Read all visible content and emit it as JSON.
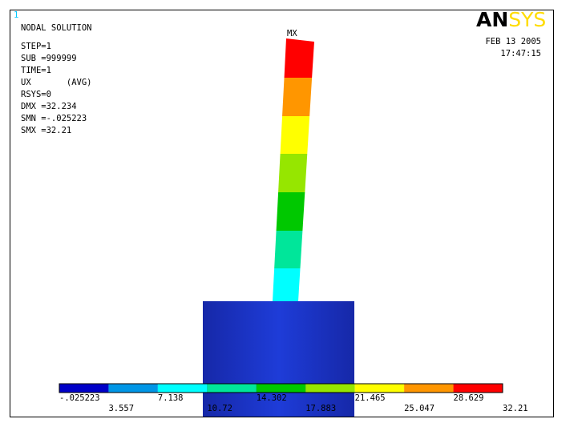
{
  "window_number": "1",
  "info": {
    "title": "NODAL SOLUTION",
    "lines": [
      "STEP=1",
      "SUB =999999",
      "TIME=1",
      "UX       (AVG)",
      "RSYS=0",
      "DMX =32.234",
      "SMN =-.025223",
      "SMX =32.21"
    ]
  },
  "logo": {
    "left": "AN",
    "right": "SYS"
  },
  "date": "FEB 13 2005",
  "time": "17:47:15",
  "max_marker": "MX",
  "legend": {
    "labels": [
      "-.025223",
      "3.557",
      "7.138",
      "10.72",
      "14.302",
      "17.883",
      "21.465",
      "25.047",
      "28.629",
      "32.21"
    ],
    "colors": [
      "#0000c8",
      "#0096e6",
      "#00ffff",
      "#00e69a",
      "#00c800",
      "#96e600",
      "#ffff00",
      "#ff9600",
      "#ff0000"
    ]
  }
}
